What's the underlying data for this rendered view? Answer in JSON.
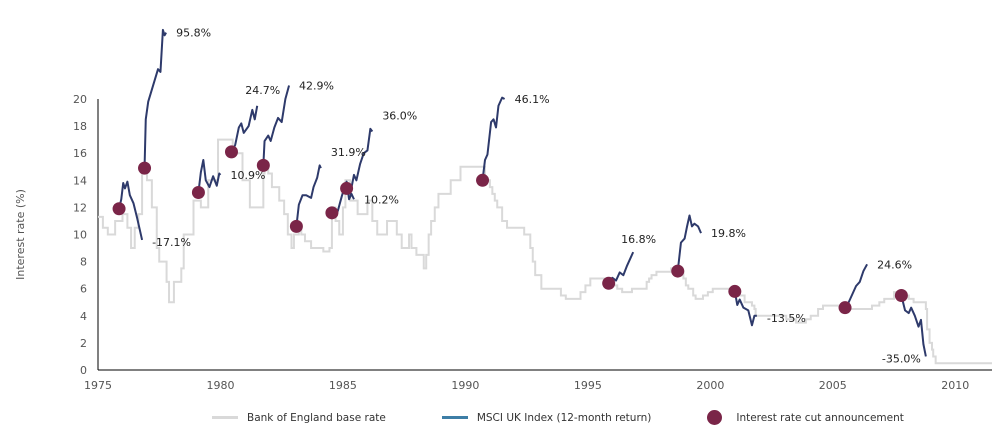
{
  "chart_data": {
    "type": "line",
    "ylabel": "Interest rate (%)",
    "xlabel": "",
    "xlim": [
      1975,
      2011.5
    ],
    "ylim": [
      0,
      20
    ],
    "x_ticks": [
      "1975",
      "1980",
      "1985",
      "1990",
      "1995",
      "2000",
      "2005",
      "2010"
    ],
    "y_ticks": [
      "0",
      "2",
      "4",
      "6",
      "8",
      "10",
      "12",
      "14",
      "16",
      "18",
      "20"
    ],
    "grid": false,
    "legend_placement": "bottom",
    "legend": [
      {
        "label": "Bank of England base rate",
        "color": "#d9d9d9"
      },
      {
        "label": "MSCI UK Index (12-month return)",
        "color": "#3d7ea6"
      },
      {
        "label": "Interest rate cut announcement",
        "color": "#7a2548"
      }
    ],
    "colors": {
      "base_rate": "#d9d9d9",
      "msci_line": "#2e3a6b",
      "cut_marker": "#7a2548",
      "axis": "#000000"
    },
    "base_rate": [
      [
        1975.0,
        11.3
      ],
      [
        1975.2,
        10.5
      ],
      [
        1975.4,
        10.0
      ],
      [
        1975.7,
        11.0
      ],
      [
        1976.0,
        11.5
      ],
      [
        1976.2,
        10.5
      ],
      [
        1976.35,
        9.0
      ],
      [
        1976.5,
        10.5
      ],
      [
        1976.65,
        11.5
      ],
      [
        1976.8,
        15.0
      ],
      [
        1977.0,
        14.0
      ],
      [
        1977.2,
        12.0
      ],
      [
        1977.4,
        9.0
      ],
      [
        1977.5,
        8.0
      ],
      [
        1977.8,
        6.5
      ],
      [
        1977.9,
        5.0
      ],
      [
        1978.1,
        6.5
      ],
      [
        1978.4,
        7.5
      ],
      [
        1978.5,
        10.0
      ],
      [
        1978.9,
        12.5
      ],
      [
        1979.2,
        12.0
      ],
      [
        1979.5,
        14.0
      ],
      [
        1979.9,
        17.0
      ],
      [
        1980.5,
        16.0
      ],
      [
        1980.9,
        14.0
      ],
      [
        1981.2,
        12.0
      ],
      [
        1981.75,
        14.5
      ],
      [
        1981.8,
        15.0
      ],
      [
        1981.95,
        14.5
      ],
      [
        1982.1,
        13.5
      ],
      [
        1982.4,
        12.5
      ],
      [
        1982.6,
        11.5
      ],
      [
        1982.75,
        10.0
      ],
      [
        1982.9,
        9.0
      ],
      [
        1983.0,
        10.0
      ],
      [
        1983.2,
        10.5
      ],
      [
        1983.3,
        10.0
      ],
      [
        1983.45,
        9.5
      ],
      [
        1983.7,
        9.0
      ],
      [
        1984.2,
        8.75
      ],
      [
        1984.45,
        9.0
      ],
      [
        1984.55,
        12.0
      ],
      [
        1984.7,
        11.0
      ],
      [
        1984.85,
        10.0
      ],
      [
        1985.0,
        12.0
      ],
      [
        1985.1,
        14.0
      ],
      [
        1985.3,
        12.5
      ],
      [
        1985.6,
        11.5
      ],
      [
        1986.0,
        12.5
      ],
      [
        1986.2,
        11.0
      ],
      [
        1986.4,
        10.0
      ],
      [
        1986.8,
        11.0
      ],
      [
        1987.2,
        10.0
      ],
      [
        1987.4,
        9.0
      ],
      [
        1987.7,
        10.0
      ],
      [
        1987.8,
        9.0
      ],
      [
        1988.0,
        8.5
      ],
      [
        1988.3,
        7.5
      ],
      [
        1988.4,
        8.5
      ],
      [
        1988.5,
        10.0
      ],
      [
        1988.6,
        11.0
      ],
      [
        1988.75,
        12.0
      ],
      [
        1988.9,
        13.0
      ],
      [
        1989.4,
        14.0
      ],
      [
        1989.8,
        15.0
      ],
      [
        1990.8,
        14.0
      ],
      [
        1991.0,
        13.5
      ],
      [
        1991.1,
        13.0
      ],
      [
        1991.2,
        12.5
      ],
      [
        1991.3,
        12.0
      ],
      [
        1991.5,
        11.0
      ],
      [
        1991.7,
        10.5
      ],
      [
        1992.4,
        10.0
      ],
      [
        1992.65,
        9.0
      ],
      [
        1992.75,
        8.0
      ],
      [
        1992.85,
        7.0
      ],
      [
        1993.1,
        6.0
      ],
      [
        1993.9,
        5.5
      ],
      [
        1994.1,
        5.25
      ],
      [
        1994.7,
        5.75
      ],
      [
        1994.9,
        6.25
      ],
      [
        1995.1,
        6.75
      ],
      [
        1995.9,
        6.5
      ],
      [
        1996.0,
        6.25
      ],
      [
        1996.2,
        6.0
      ],
      [
        1996.4,
        5.75
      ],
      [
        1996.8,
        6.0
      ],
      [
        1997.4,
        6.5
      ],
      [
        1997.5,
        6.75
      ],
      [
        1997.6,
        7.0
      ],
      [
        1997.8,
        7.25
      ],
      [
        1998.4,
        7.5
      ],
      [
        1998.8,
        7.25
      ],
      [
        1998.9,
        6.75
      ],
      [
        1999.0,
        6.25
      ],
      [
        1999.1,
        6.0
      ],
      [
        1999.3,
        5.5
      ],
      [
        1999.4,
        5.25
      ],
      [
        1999.7,
        5.5
      ],
      [
        1999.9,
        5.75
      ],
      [
        2000.1,
        6.0
      ],
      [
        2001.1,
        5.75
      ],
      [
        2001.2,
        5.5
      ],
      [
        2001.4,
        5.0
      ],
      [
        2001.7,
        4.75
      ],
      [
        2001.8,
        4.5
      ],
      [
        2001.85,
        4.0
      ],
      [
        2003.1,
        3.75
      ],
      [
        2003.5,
        3.5
      ],
      [
        2003.9,
        3.75
      ],
      [
        2004.1,
        4.0
      ],
      [
        2004.4,
        4.5
      ],
      [
        2004.6,
        4.75
      ],
      [
        2005.6,
        4.5
      ],
      [
        2006.6,
        4.75
      ],
      [
        2006.9,
        5.0
      ],
      [
        2007.1,
        5.25
      ],
      [
        2007.5,
        5.75
      ],
      [
        2007.9,
        5.5
      ],
      [
        2008.1,
        5.25
      ],
      [
        2008.3,
        5.0
      ],
      [
        2008.8,
        4.5
      ],
      [
        2008.85,
        3.0
      ],
      [
        2008.95,
        2.0
      ],
      [
        2009.05,
        1.5
      ],
      [
        2009.1,
        1.0
      ],
      [
        2009.2,
        0.5
      ],
      [
        2011.5,
        0.5
      ]
    ],
    "episodes": [
      {
        "cut": [
          1975.86,
          11.9
        ],
        "return_label": "-17.1%",
        "points": [
          [
            1975.86,
            11.9
          ],
          [
            1975.95,
            12.6
          ],
          [
            1976.03,
            13.8
          ],
          [
            1976.1,
            13.4
          ],
          [
            1976.2,
            13.9
          ],
          [
            1976.3,
            12.9
          ],
          [
            1976.45,
            12.3
          ],
          [
            1976.6,
            11.2
          ],
          [
            1976.8,
            9.6
          ]
        ]
      },
      {
        "cut": [
          1976.9,
          14.9
        ],
        "return_label": "95.8%",
        "points": [
          [
            1976.9,
            14.9
          ],
          [
            1976.95,
            18.5
          ],
          [
            1977.05,
            19.8
          ],
          [
            1977.25,
            21.0
          ],
          [
            1977.45,
            22.2
          ],
          [
            1977.55,
            22.0
          ],
          [
            1977.65,
            25.1
          ],
          [
            1977.72,
            24.7
          ],
          [
            1977.78,
            24.9
          ]
        ]
      },
      {
        "cut": [
          1979.1,
          13.1
        ],
        "return_label": "10.9%",
        "points": [
          [
            1979.1,
            13.1
          ],
          [
            1979.2,
            14.6
          ],
          [
            1979.3,
            15.5
          ],
          [
            1979.4,
            14.0
          ],
          [
            1979.55,
            13.5
          ],
          [
            1979.7,
            14.3
          ],
          [
            1979.85,
            13.6
          ],
          [
            1979.95,
            14.5
          ],
          [
            1980.0,
            14.4
          ]
        ]
      },
      {
        "cut": [
          1980.45,
          16.1
        ],
        "return_label": "24.7%",
        "points": [
          [
            1980.45,
            16.1
          ],
          [
            1980.6,
            16.6
          ],
          [
            1980.75,
            17.9
          ],
          [
            1980.85,
            18.2
          ],
          [
            1980.95,
            17.5
          ],
          [
            1981.15,
            18.0
          ],
          [
            1981.3,
            19.2
          ],
          [
            1981.4,
            18.5
          ],
          [
            1981.5,
            19.5
          ]
        ]
      },
      {
        "cut": [
          1981.75,
          15.1
        ],
        "return_label": "42.9%",
        "points": [
          [
            1981.75,
            15.1
          ],
          [
            1981.8,
            16.9
          ],
          [
            1981.95,
            17.3
          ],
          [
            1982.05,
            16.9
          ],
          [
            1982.2,
            17.9
          ],
          [
            1982.35,
            18.6
          ],
          [
            1982.5,
            18.3
          ],
          [
            1982.65,
            20.0
          ],
          [
            1982.8,
            21.0
          ]
        ]
      },
      {
        "cut": [
          1983.1,
          10.6
        ],
        "return_label": "31.9%",
        "points": [
          [
            1983.1,
            10.6
          ],
          [
            1983.2,
            12.2
          ],
          [
            1983.35,
            12.9
          ],
          [
            1983.5,
            12.9
          ],
          [
            1983.7,
            12.7
          ],
          [
            1983.8,
            13.5
          ],
          [
            1983.95,
            14.2
          ],
          [
            1984.05,
            15.1
          ],
          [
            1984.1,
            14.9
          ]
        ]
      },
      {
        "cut": [
          1984.55,
          11.6
        ],
        "return_label": "10.2%",
        "points": [
          [
            1984.55,
            11.6
          ],
          [
            1984.7,
            11.3
          ],
          [
            1984.8,
            11.8
          ],
          [
            1984.95,
            12.8
          ],
          [
            1985.05,
            13.4
          ],
          [
            1985.15,
            13.9
          ],
          [
            1985.25,
            12.6
          ],
          [
            1985.35,
            13.0
          ],
          [
            1985.45,
            12.6
          ]
        ]
      },
      {
        "cut": [
          1985.15,
          13.4
        ],
        "return_label": "36.0%",
        "points": [
          [
            1985.15,
            13.4
          ],
          [
            1985.3,
            13.0
          ],
          [
            1985.45,
            14.4
          ],
          [
            1985.55,
            14.0
          ],
          [
            1985.7,
            15.2
          ],
          [
            1985.85,
            16.0
          ],
          [
            1986.0,
            16.2
          ],
          [
            1986.12,
            17.8
          ],
          [
            1986.2,
            17.6
          ]
        ]
      },
      {
        "cut": [
          1990.7,
          14.0
        ],
        "return_label": "46.1%",
        "points": [
          [
            1990.7,
            14.0
          ],
          [
            1990.8,
            15.5
          ],
          [
            1990.9,
            15.9
          ],
          [
            1991.05,
            18.3
          ],
          [
            1991.15,
            18.5
          ],
          [
            1991.25,
            17.9
          ],
          [
            1991.35,
            19.5
          ],
          [
            1991.5,
            20.1
          ],
          [
            1991.6,
            20.0
          ]
        ]
      },
      {
        "cut": [
          1995.85,
          6.4
        ],
        "return_label": "16.8%",
        "points": [
          [
            1995.85,
            6.4
          ],
          [
            1996.0,
            6.8
          ],
          [
            1996.15,
            6.6
          ],
          [
            1996.3,
            7.2
          ],
          [
            1996.45,
            7.0
          ],
          [
            1996.6,
            7.7
          ],
          [
            1996.75,
            8.3
          ],
          [
            1996.85,
            8.7
          ]
        ]
      },
      {
        "cut": [
          1998.67,
          7.3
        ],
        "return_label": "19.8%",
        "points": [
          [
            1998.67,
            7.3
          ],
          [
            1998.8,
            9.4
          ],
          [
            1998.95,
            9.7
          ],
          [
            1999.05,
            10.6
          ],
          [
            1999.15,
            11.4
          ],
          [
            1999.25,
            10.6
          ],
          [
            1999.35,
            10.8
          ],
          [
            1999.5,
            10.6
          ],
          [
            1999.62,
            10.1
          ]
        ]
      },
      {
        "cut": [
          2001.0,
          5.8
        ],
        "return_label": "-13.5%",
        "points": [
          [
            2001.0,
            5.8
          ],
          [
            2001.1,
            4.8
          ],
          [
            2001.2,
            5.2
          ],
          [
            2001.35,
            4.6
          ],
          [
            2001.55,
            4.4
          ],
          [
            2001.7,
            3.3
          ],
          [
            2001.8,
            4.0
          ],
          [
            2001.9,
            4.0
          ]
        ]
      },
      {
        "cut": [
          2005.5,
          4.6
        ],
        "return_label": "24.6%",
        "points": [
          [
            2005.5,
            4.6
          ],
          [
            2005.65,
            5.0
          ],
          [
            2005.8,
            5.6
          ],
          [
            2005.95,
            6.2
          ],
          [
            2006.1,
            6.5
          ],
          [
            2006.25,
            7.3
          ],
          [
            2006.4,
            7.8
          ]
        ]
      },
      {
        "cut": [
          2007.8,
          5.5
        ],
        "return_label": "-35.0%",
        "points": [
          [
            2007.8,
            5.5
          ],
          [
            2007.95,
            4.4
          ],
          [
            2008.1,
            4.2
          ],
          [
            2008.2,
            4.6
          ],
          [
            2008.35,
            4.0
          ],
          [
            2008.5,
            3.2
          ],
          [
            2008.6,
            3.7
          ],
          [
            2008.7,
            1.9
          ],
          [
            2008.8,
            1.0
          ]
        ]
      }
    ]
  }
}
